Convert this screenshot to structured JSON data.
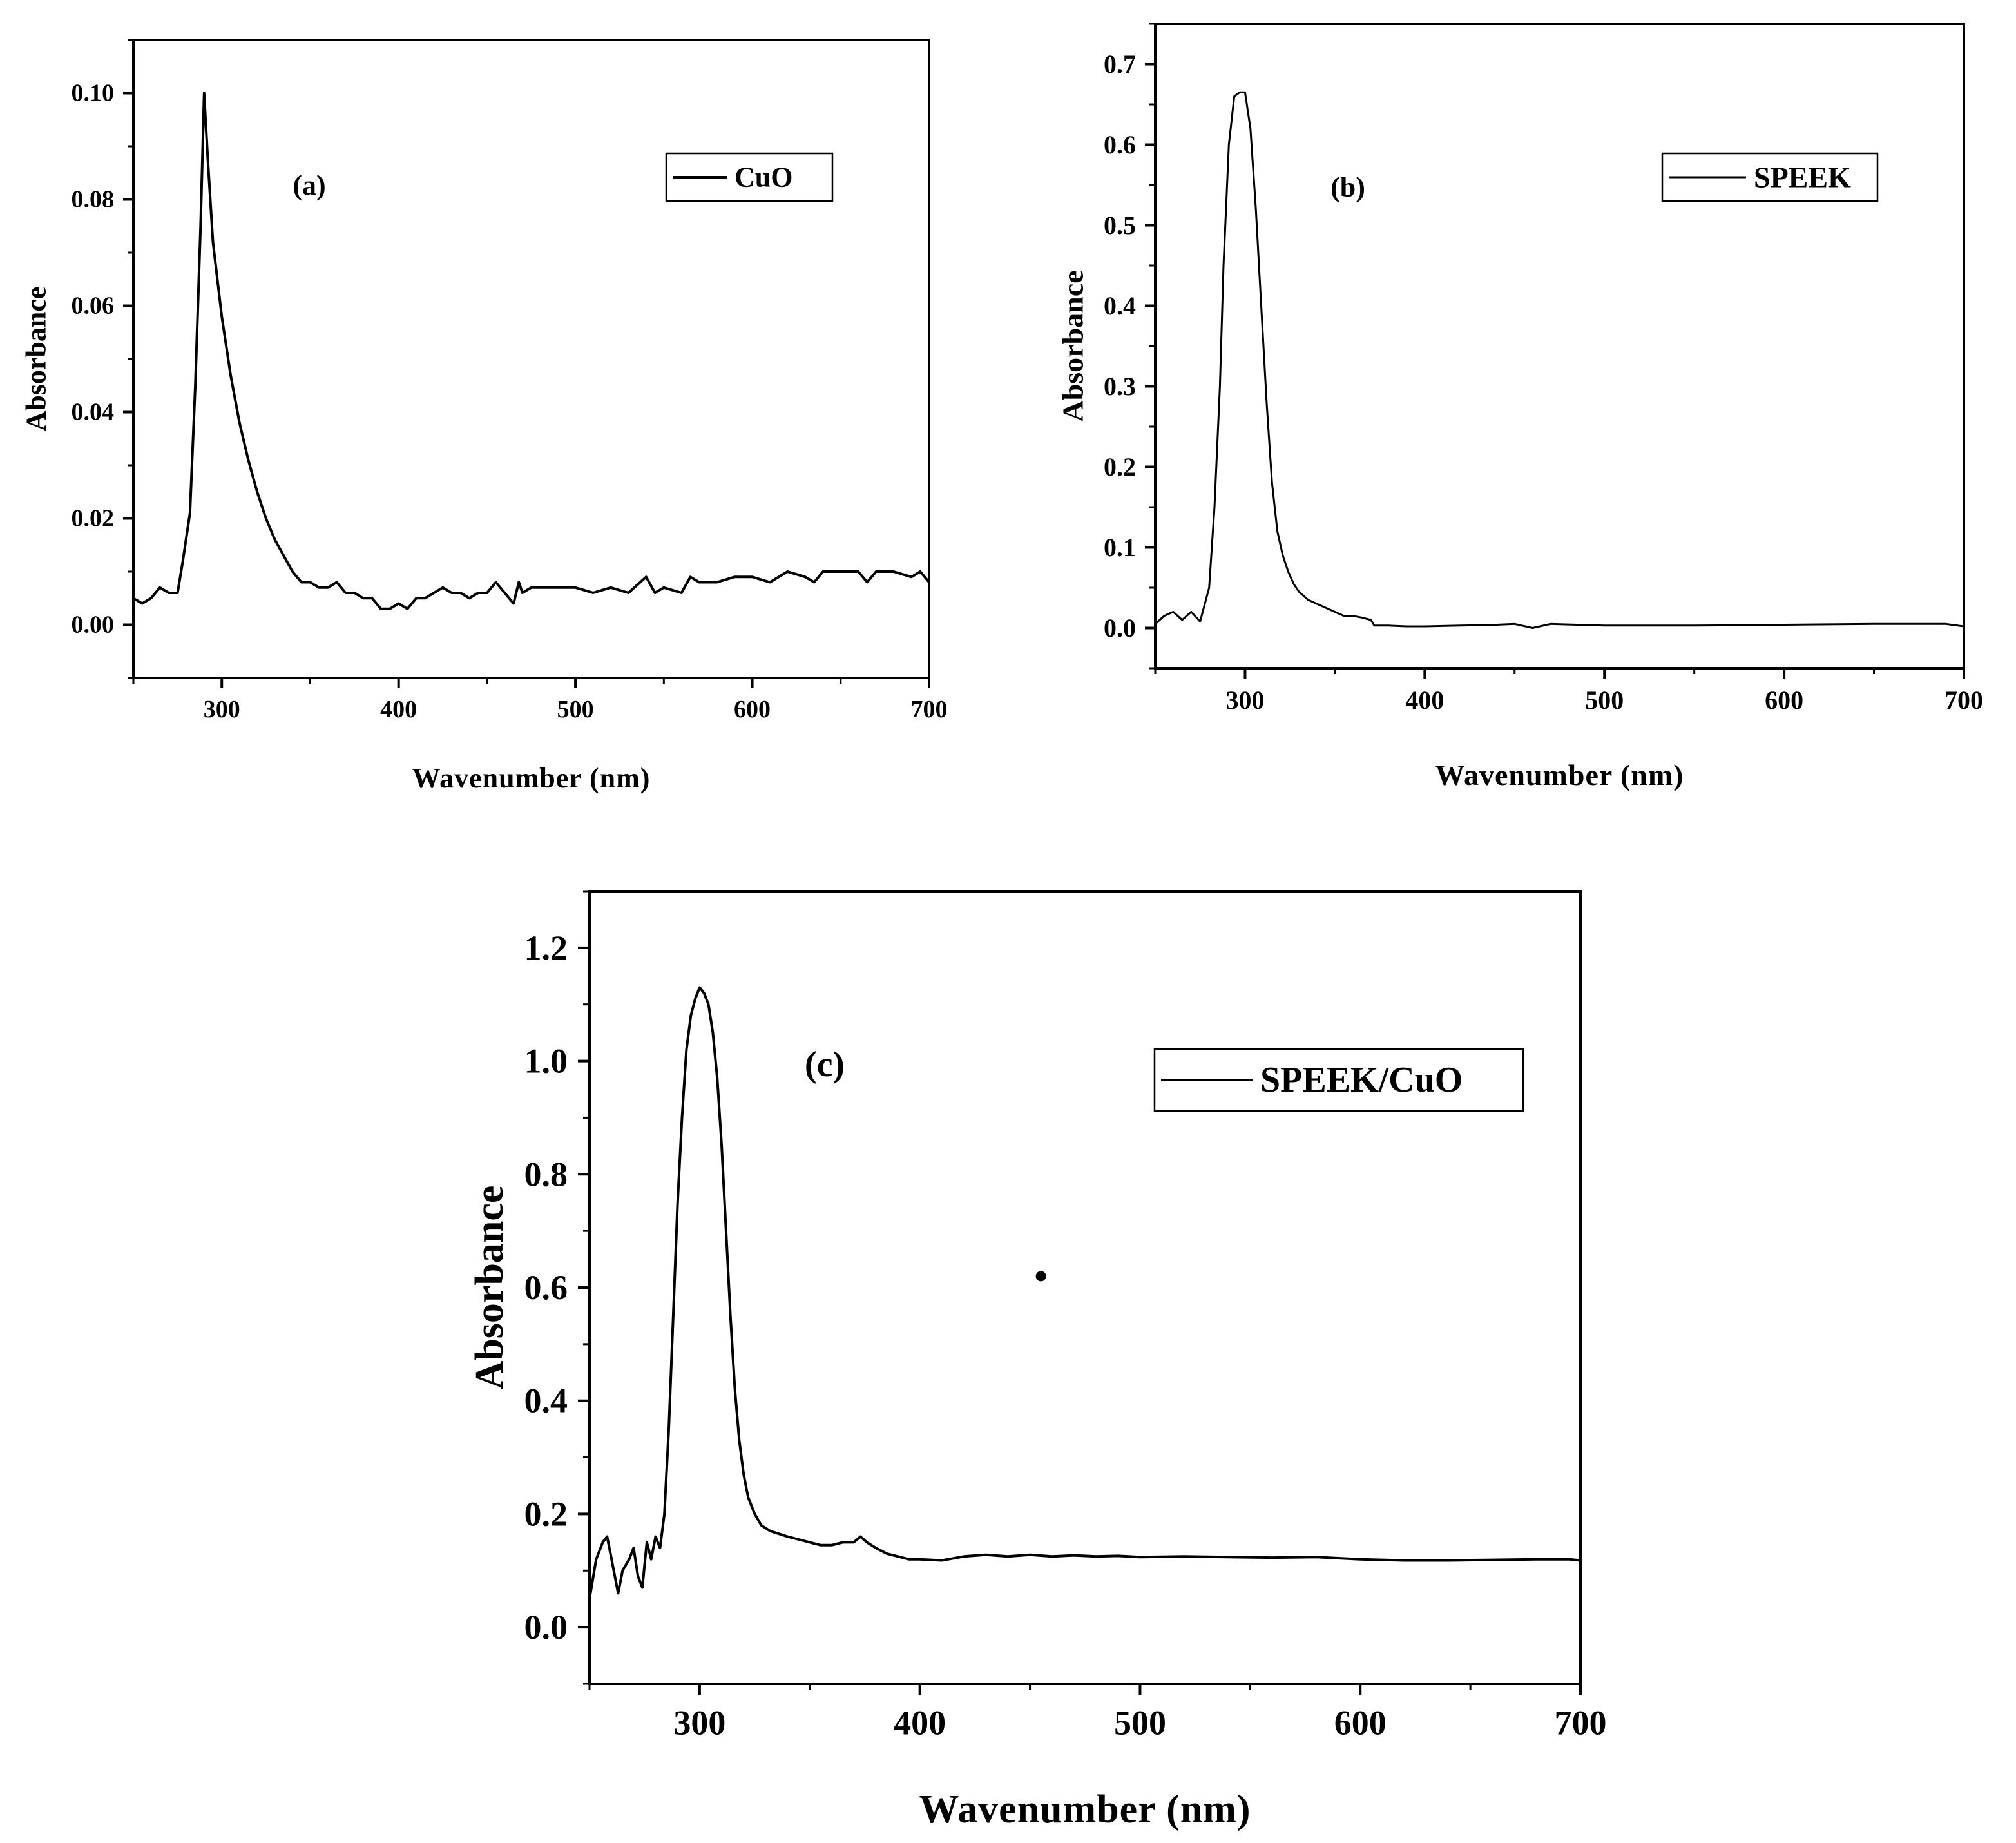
{
  "figure": {
    "background": "#ffffff",
    "ink": "#000000"
  },
  "chart_data": [
    {
      "type": "line",
      "panel_label": "(a)",
      "xlabel": "Wavenumber (nm)",
      "ylabel": "Absorbance",
      "xlim": [
        250,
        700
      ],
      "ylim": [
        -0.01,
        0.11
      ],
      "xticks": [
        300,
        400,
        500,
        600,
        700
      ],
      "xtick_labels": [
        "300",
        "400",
        "500",
        "600",
        "700"
      ],
      "yticks": [
        0.0,
        0.02,
        0.04,
        0.06,
        0.08,
        0.1
      ],
      "ytick_labels": [
        "0.00",
        "0.02",
        "0.04",
        "0.06",
        "0.08",
        "0.10"
      ],
      "grid": false,
      "legend": {
        "position": "top-right",
        "entries": [
          "CuO"
        ]
      },
      "series": [
        {
          "name": "CuO",
          "color": "#000000",
          "x": [
            250,
            255,
            260,
            265,
            270,
            275,
            278,
            282,
            285,
            288,
            290,
            292,
            295,
            300,
            305,
            310,
            315,
            320,
            325,
            330,
            335,
            340,
            345,
            350,
            355,
            360,
            365,
            370,
            375,
            380,
            385,
            390,
            395,
            400,
            405,
            410,
            415,
            420,
            425,
            430,
            435,
            440,
            445,
            450,
            455,
            460,
            465,
            468,
            470,
            475,
            480,
            490,
            500,
            510,
            520,
            530,
            540,
            545,
            550,
            560,
            565,
            570,
            580,
            590,
            600,
            610,
            620,
            630,
            635,
            640,
            650,
            660,
            665,
            670,
            680,
            690,
            695,
            700
          ],
          "y": [
            0.005,
            0.004,
            0.005,
            0.007,
            0.006,
            0.006,
            0.012,
            0.021,
            0.045,
            0.075,
            0.1,
            0.088,
            0.072,
            0.058,
            0.047,
            0.038,
            0.031,
            0.025,
            0.02,
            0.016,
            0.013,
            0.01,
            0.008,
            0.008,
            0.007,
            0.007,
            0.008,
            0.006,
            0.006,
            0.005,
            0.005,
            0.003,
            0.003,
            0.004,
            0.003,
            0.005,
            0.005,
            0.006,
            0.007,
            0.006,
            0.006,
            0.005,
            0.006,
            0.006,
            0.008,
            0.006,
            0.004,
            0.008,
            0.006,
            0.007,
            0.007,
            0.007,
            0.007,
            0.006,
            0.007,
            0.006,
            0.009,
            0.006,
            0.007,
            0.006,
            0.009,
            0.008,
            0.008,
            0.009,
            0.009,
            0.008,
            0.01,
            0.009,
            0.008,
            0.01,
            0.01,
            0.01,
            0.008,
            0.01,
            0.01,
            0.009,
            0.01,
            0.008
          ]
        }
      ]
    },
    {
      "type": "line",
      "panel_label": "(b)",
      "xlabel": "Wavenumber (nm)",
      "ylabel": "Absorbance",
      "xlim": [
        250,
        700
      ],
      "ylim": [
        -0.05,
        0.75
      ],
      "xticks": [
        300,
        400,
        500,
        600,
        700
      ],
      "xtick_labels": [
        "300",
        "400",
        "500",
        "600",
        "700"
      ],
      "yticks": [
        0.0,
        0.1,
        0.2,
        0.3,
        0.4,
        0.5,
        0.6,
        0.7
      ],
      "ytick_labels": [
        "0.0",
        "0.1",
        "0.2",
        "0.3",
        "0.4",
        "0.5",
        "0.6",
        "0.7"
      ],
      "grid": false,
      "legend": {
        "position": "top-right",
        "entries": [
          "SPEEK"
        ]
      },
      "series": [
        {
          "name": "SPEEK",
          "color": "#000000",
          "x": [
            250,
            255,
            260,
            265,
            270,
            275,
            280,
            283,
            286,
            288,
            291,
            294,
            297,
            300,
            303,
            306,
            309,
            312,
            315,
            318,
            321,
            324,
            327,
            330,
            335,
            340,
            345,
            350,
            355,
            360,
            365,
            370,
            372,
            375,
            380,
            390,
            400,
            420,
            440,
            450,
            460,
            470,
            500,
            550,
            600,
            650,
            690,
            700
          ],
          "y": [
            0.005,
            0.015,
            0.02,
            0.01,
            0.02,
            0.008,
            0.05,
            0.15,
            0.3,
            0.45,
            0.6,
            0.66,
            0.665,
            0.665,
            0.62,
            0.52,
            0.4,
            0.28,
            0.18,
            0.12,
            0.09,
            0.07,
            0.055,
            0.045,
            0.035,
            0.03,
            0.025,
            0.02,
            0.015,
            0.015,
            0.013,
            0.01,
            0.003,
            0.003,
            0.003,
            0.002,
            0.002,
            0.003,
            0.004,
            0.005,
            0.0,
            0.005,
            0.003,
            0.003,
            0.004,
            0.005,
            0.005,
            0.002
          ]
        }
      ]
    },
    {
      "type": "line",
      "panel_label": "(c)",
      "xlabel": "Wavenumber (nm)",
      "ylabel": "Absorbance",
      "xlim": [
        250,
        700
      ],
      "ylim": [
        -0.1,
        1.3
      ],
      "xticks": [
        300,
        400,
        500,
        600,
        700
      ],
      "xtick_labels": [
        "300",
        "400",
        "500",
        "600",
        "700"
      ],
      "yticks": [
        0.0,
        0.2,
        0.4,
        0.6,
        0.8,
        1.0,
        1.2
      ],
      "ytick_labels": [
        "0.0",
        "0.2",
        "0.4",
        "0.6",
        "0.8",
        "1.0",
        "1.2"
      ],
      "grid": false,
      "legend": {
        "position": "top-right",
        "entries": [
          "SPEEK/CuO"
        ]
      },
      "annotations": [
        {
          "type": "dot",
          "x": 455,
          "y": 0.62
        }
      ],
      "series": [
        {
          "name": "SPEEK/CuO",
          "color": "#000000",
          "x": [
            250,
            253,
            256,
            258,
            260,
            263,
            265,
            268,
            270,
            272,
            274,
            276,
            278,
            280,
            282,
            284,
            286,
            288,
            290,
            292,
            294,
            296,
            298,
            300,
            302,
            304,
            306,
            308,
            310,
            312,
            314,
            316,
            318,
            320,
            322,
            325,
            328,
            332,
            336,
            340,
            345,
            350,
            355,
            360,
            365,
            370,
            373,
            376,
            380,
            385,
            390,
            395,
            400,
            410,
            420,
            430,
            440,
            450,
            460,
            470,
            480,
            490,
            500,
            520,
            540,
            560,
            580,
            600,
            620,
            640,
            660,
            680,
            695,
            700
          ],
          "y": [
            0.05,
            0.12,
            0.15,
            0.16,
            0.12,
            0.06,
            0.1,
            0.12,
            0.14,
            0.09,
            0.07,
            0.15,
            0.12,
            0.16,
            0.14,
            0.2,
            0.35,
            0.55,
            0.75,
            0.9,
            1.02,
            1.08,
            1.11,
            1.13,
            1.12,
            1.1,
            1.05,
            0.97,
            0.85,
            0.7,
            0.55,
            0.42,
            0.33,
            0.27,
            0.23,
            0.2,
            0.18,
            0.17,
            0.165,
            0.16,
            0.155,
            0.15,
            0.145,
            0.145,
            0.15,
            0.15,
            0.16,
            0.15,
            0.14,
            0.13,
            0.125,
            0.12,
            0.12,
            0.118,
            0.125,
            0.128,
            0.125,
            0.128,
            0.125,
            0.127,
            0.125,
            0.126,
            0.124,
            0.125,
            0.124,
            0.123,
            0.124,
            0.12,
            0.118,
            0.118,
            0.119,
            0.12,
            0.12,
            0.118
          ]
        }
      ]
    }
  ]
}
